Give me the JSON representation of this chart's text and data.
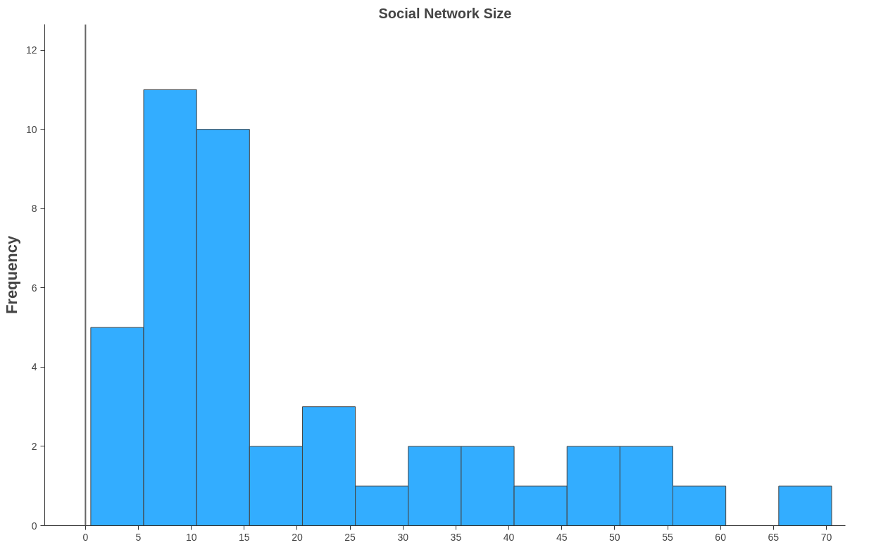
{
  "chart_data": {
    "type": "histogram",
    "title": "Social Network Size",
    "ylabel": "Frequency",
    "bins": [
      0.5,
      5.5,
      10.5,
      15.5,
      20.5,
      25.5,
      30.5,
      35.5,
      40.5,
      45.5,
      50.5,
      55.5,
      60.5,
      65.5,
      70.5
    ],
    "values": [
      5,
      11,
      10,
      2,
      3,
      1,
      2,
      2,
      1,
      2,
      2,
      1,
      0,
      1
    ],
    "color": "#33adff",
    "xlim": [
      -3.85,
      71.8
    ],
    "ylim": [
      0,
      12.65
    ],
    "xticks": [
      0,
      5,
      10,
      15,
      20,
      25,
      30,
      35,
      40,
      45,
      50,
      55,
      60,
      65,
      70
    ],
    "yticks": [
      0,
      2,
      4,
      6,
      8,
      10,
      12
    ],
    "ref_lines": [
      {
        "axis": "x",
        "value": 0,
        "color": "#666666"
      }
    ],
    "grid": false
  }
}
